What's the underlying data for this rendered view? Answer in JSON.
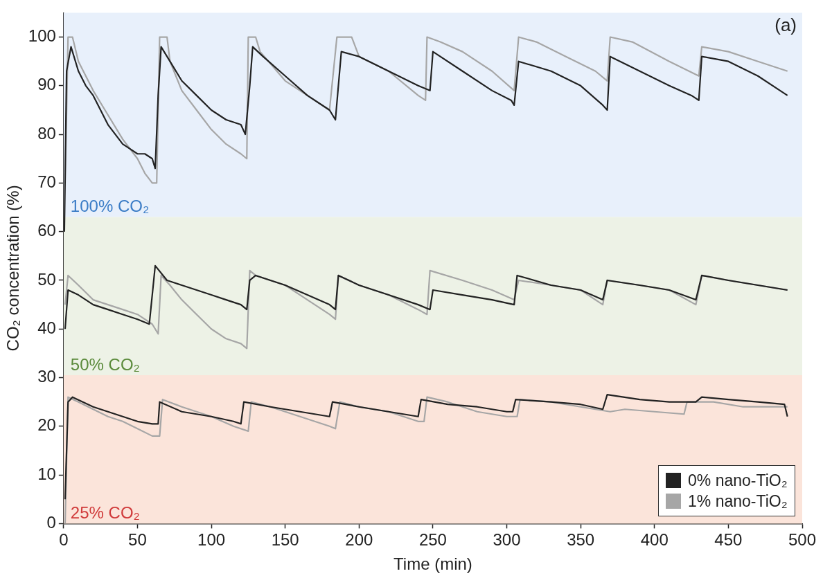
{
  "chart_data": {
    "type": "line",
    "xlabel": "Time (min)",
    "ylabel": "CO₂ concentration (%)",
    "annotations": [
      "(a)"
    ],
    "xlim": [
      0,
      500
    ],
    "xticks": [
      0,
      50,
      100,
      150,
      200,
      250,
      300,
      350,
      400,
      450,
      500
    ],
    "ylim": [
      0,
      105
    ],
    "yticks": [
      0,
      10,
      20,
      30,
      40,
      50,
      60,
      70,
      80,
      90,
      100
    ],
    "grid": false,
    "legend": "bottom right",
    "marker": "none",
    "line_style": "solid",
    "bands": [
      {
        "axis": "y",
        "from": 63,
        "to": 105,
        "label": "100% CO₂",
        "color": "#e8f0fb"
      },
      {
        "axis": "y",
        "from": 30.5,
        "to": 63,
        "label": "50% CO₂",
        "color": "#edf2e6"
      },
      {
        "axis": "y",
        "from": 0,
        "to": 30.5,
        "label": "25% CO₂",
        "color": "#fbe4da"
      }
    ],
    "series": [
      {
        "name": "0% nano-TiO₂",
        "color": "#222222",
        "x": [
          1,
          3,
          6,
          20,
          30,
          40,
          50,
          60,
          64,
          65,
          80,
          100,
          115,
          120,
          122,
          140,
          160,
          180,
          182,
          200,
          220,
          240,
          242,
          260,
          280,
          300,
          304,
          306,
          330,
          350,
          365,
          368,
          390,
          410,
          428,
          432,
          450,
          470,
          488,
          490
        ],
        "values": [
          5,
          25,
          26,
          24,
          23,
          22,
          21,
          20.5,
          20.5,
          25,
          23,
          22,
          21,
          20.5,
          25,
          24,
          23,
          22,
          25,
          24,
          23,
          22,
          25.5,
          24.5,
          24,
          23,
          23,
          25.5,
          25,
          24.5,
          23.5,
          26.5,
          25.5,
          25,
          25,
          26,
          25.5,
          25,
          24.5,
          22
        ]
      },
      {
        "name": "1% nano-TiO₂",
        "color": "#a6a6a6",
        "x": [
          1,
          3,
          10,
          20,
          30,
          40,
          50,
          60,
          65,
          67,
          80,
          100,
          115,
          125,
          127,
          140,
          160,
          180,
          184,
          187,
          200,
          220,
          240,
          244,
          246,
          260,
          280,
          300,
          307,
          309,
          330,
          350,
          370,
          380,
          400,
          420,
          422,
          440,
          460,
          490
        ],
        "values": [
          0,
          26,
          25,
          23.5,
          22,
          21,
          19.5,
          18,
          18,
          25.5,
          24,
          22,
          20,
          19,
          25,
          24,
          22,
          20,
          19.5,
          25,
          24,
          23,
          21,
          21,
          26,
          25,
          23,
          22,
          22,
          25.5,
          25,
          24,
          23,
          23.5,
          23,
          22.5,
          25,
          25,
          24,
          24
        ]
      },
      {
        "color": "#222222",
        "x": [
          1,
          3,
          10,
          20,
          30,
          40,
          50,
          58,
          60,
          62,
          70,
          80,
          90,
          100,
          110,
          120,
          124,
          126,
          130,
          150,
          165,
          180,
          184,
          186,
          200,
          220,
          240,
          248,
          250,
          270,
          290,
          305,
          307,
          330,
          350,
          365,
          368,
          390,
          410,
          428,
          432,
          450,
          470,
          490
        ],
        "values": [
          40,
          48,
          47,
          45,
          44,
          43,
          42,
          41,
          47,
          53,
          50,
          49,
          48,
          47,
          46,
          45,
          44,
          50,
          51,
          49,
          47,
          45,
          44,
          51,
          49,
          47,
          45,
          44,
          48,
          47,
          46,
          45,
          51,
          49,
          48,
          46,
          50,
          49,
          48,
          46,
          51,
          50,
          49,
          48
        ]
      },
      {
        "color": "#a6a6a6",
        "x": [
          1,
          3,
          10,
          20,
          30,
          40,
          50,
          60,
          64,
          66,
          72,
          80,
          90,
          100,
          110,
          120,
          124,
          126,
          130,
          150,
          165,
          180,
          184,
          186,
          200,
          220,
          240,
          246,
          248,
          270,
          290,
          305,
          308,
          330,
          350,
          365,
          368,
          390,
          410,
          428,
          432,
          450,
          470,
          490
        ],
        "values": [
          45,
          51,
          49,
          46,
          45,
          44,
          43,
          41,
          39,
          51,
          49,
          46,
          43,
          40,
          38,
          37,
          36,
          52,
          51,
          49,
          46,
          43,
          42,
          51,
          49,
          47,
          44,
          43,
          52,
          50,
          48,
          46,
          50,
          49,
          48,
          45,
          50,
          49,
          48,
          45,
          51,
          50,
          49,
          48
        ]
      },
      {
        "color": "#222222",
        "x": [
          0.5,
          2,
          5,
          10,
          15,
          20,
          25,
          30,
          35,
          40,
          45,
          50,
          55,
          60,
          62,
          64,
          66,
          70,
          80,
          90,
          100,
          110,
          120,
          123,
          126,
          128,
          135,
          150,
          165,
          180,
          184,
          186,
          188,
          200,
          220,
          240,
          248,
          250,
          270,
          290,
          303,
          305,
          308,
          330,
          350,
          365,
          368,
          370,
          390,
          410,
          425,
          430,
          432,
          450,
          470,
          485,
          490
        ],
        "values": [
          60,
          93,
          98,
          93,
          90,
          88,
          85,
          82,
          80,
          78,
          77,
          76,
          76,
          75,
          73,
          88,
          98,
          96,
          91,
          88,
          85,
          83,
          82,
          80,
          90,
          98,
          96,
          92,
          88,
          85,
          83,
          90,
          97,
          96,
          93,
          90,
          89,
          97,
          93,
          89,
          87,
          86,
          95,
          93,
          90,
          86,
          85,
          96,
          93,
          90,
          88,
          87,
          96,
          95,
          92,
          89,
          88
        ]
      },
      {
        "color": "#a6a6a6",
        "x": [
          1,
          3,
          6,
          10,
          20,
          30,
          40,
          50,
          55,
          60,
          63,
          65,
          70,
          72,
          80,
          90,
          100,
          110,
          120,
          124,
          125,
          130,
          133,
          150,
          165,
          180,
          185,
          195,
          200,
          220,
          240,
          245,
          246,
          255,
          270,
          290,
          305,
          308,
          320,
          340,
          360,
          368,
          370,
          385,
          410,
          430,
          432,
          450,
          470,
          490
        ],
        "values": [
          70,
          100,
          100,
          95,
          89,
          84,
          79,
          75,
          72,
          70,
          70,
          100,
          100,
          95,
          89,
          85,
          81,
          78,
          76,
          75,
          100,
          100,
          97,
          91,
          88,
          85,
          100,
          100,
          96,
          93,
          88,
          87,
          100,
          99,
          97,
          93,
          89,
          100,
          99,
          96,
          93,
          91,
          100,
          99,
          95,
          92,
          98,
          97,
          95,
          93
        ]
      }
    ]
  }
}
